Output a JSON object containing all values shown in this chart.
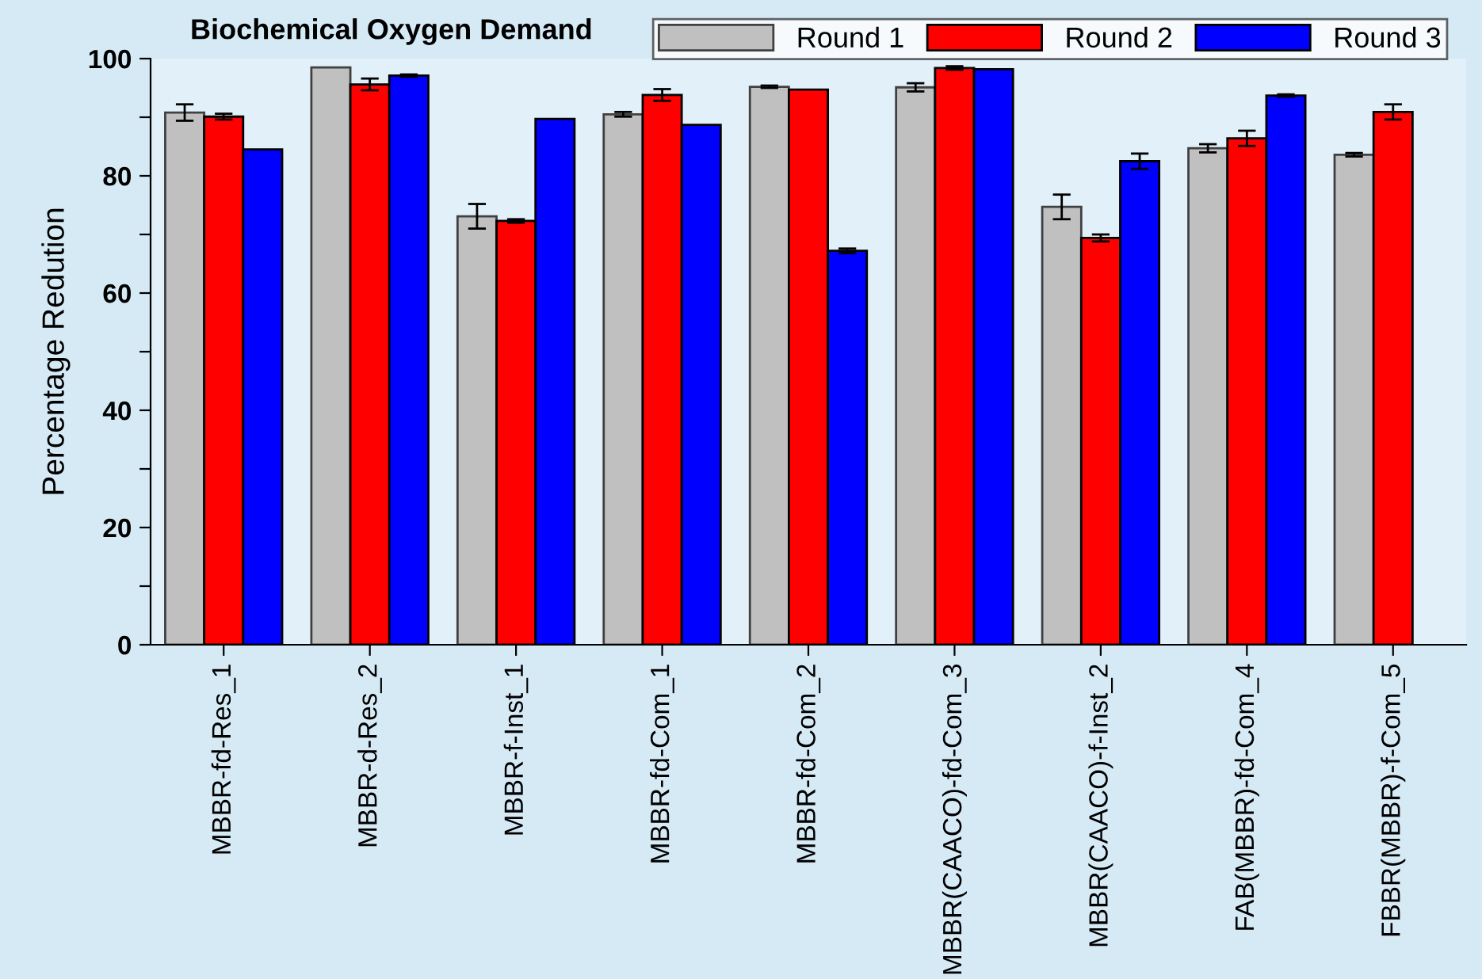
{
  "chart_data": {
    "type": "bar",
    "title": "Biochemical Oxygen Demand",
    "ylabel": "Percentage Redution",
    "categories": [
      "MBBR-fd-Res_1",
      "MBBR-d-Res_2",
      "MBBR-f-Inst_1",
      "MBBR-fd-Com_1",
      "MBBR-fd-Com_2",
      "MBBR(CAACO)-fd-Com_3",
      "MBBR(CAACO)-f-Inst_2",
      "FAB(MBBR)-fd-Com_4",
      "FBBR(MBBR)-f-Com_5"
    ],
    "series": [
      {
        "name": "Round 1",
        "color": "#c0c0c0",
        "values": [
          90.8,
          98.5,
          73.1,
          90.5,
          95.2,
          95.1,
          74.7,
          84.7,
          83.6
        ],
        "errors": [
          1.4,
          null,
          2.1,
          0.4,
          0.2,
          0.7,
          2.1,
          0.7,
          0.3
        ]
      },
      {
        "name": "Round 2",
        "color": "#ff0000",
        "values": [
          90.1,
          95.6,
          72.3,
          93.8,
          94.7,
          98.4,
          69.4,
          86.4,
          90.9
        ],
        "errors": [
          0.5,
          1.0,
          0.3,
          1.0,
          null,
          0.3,
          0.6,
          1.3,
          1.3
        ]
      },
      {
        "name": "Round 3",
        "color": "#0000ff",
        "values": [
          84.5,
          97.1,
          89.7,
          88.7,
          67.2,
          98.2,
          82.5,
          93.7,
          null
        ],
        "errors": [
          null,
          0.2,
          null,
          null,
          0.4,
          null,
          1.3,
          0.2,
          null
        ]
      }
    ],
    "ylim": [
      0,
      100
    ],
    "yticks": [
      0,
      {
        "value": 10,
        "label": null
      },
      20,
      {
        "value": 30,
        "label": null
      },
      40,
      {
        "value": 50,
        "label": null
      },
      60,
      {
        "value": 70,
        "label": null
      },
      80,
      {
        "value": 90,
        "label": null
      },
      100
    ],
    "grid": false,
    "legend": "top right"
  }
}
